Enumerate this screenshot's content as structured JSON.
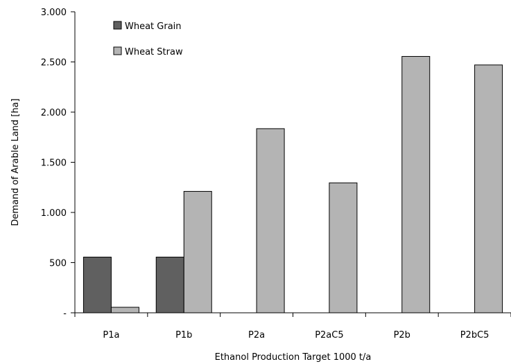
{
  "chart_data": {
    "type": "bar",
    "title": "",
    "xlabel": "Ethanol Production Target 1000 t/a",
    "ylabel": "Demand of Arable Land [ha]",
    "categories": [
      "P1a",
      "P1b",
      "P2a",
      "P2aC5",
      "P2b",
      "P2bC5"
    ],
    "series": [
      {
        "name": "Wheat Grain",
        "values": [
          555,
          555,
          0,
          0,
          0,
          0
        ],
        "color": "#606060"
      },
      {
        "name": "Wheat Straw",
        "values": [
          55,
          1210,
          1835,
          1295,
          2555,
          2470
        ],
        "color": "#b4b4b4"
      }
    ],
    "ylim": [
      0,
      3000
    ],
    "yticks": [
      0,
      500,
      1000,
      1500,
      2000,
      2500,
      3000
    ],
    "ytick_labels": [
      "-",
      "500",
      "1.000",
      "1.500",
      "2.000",
      "2.500",
      "3.000"
    ],
    "legend_position": "top-left",
    "grid": false
  }
}
